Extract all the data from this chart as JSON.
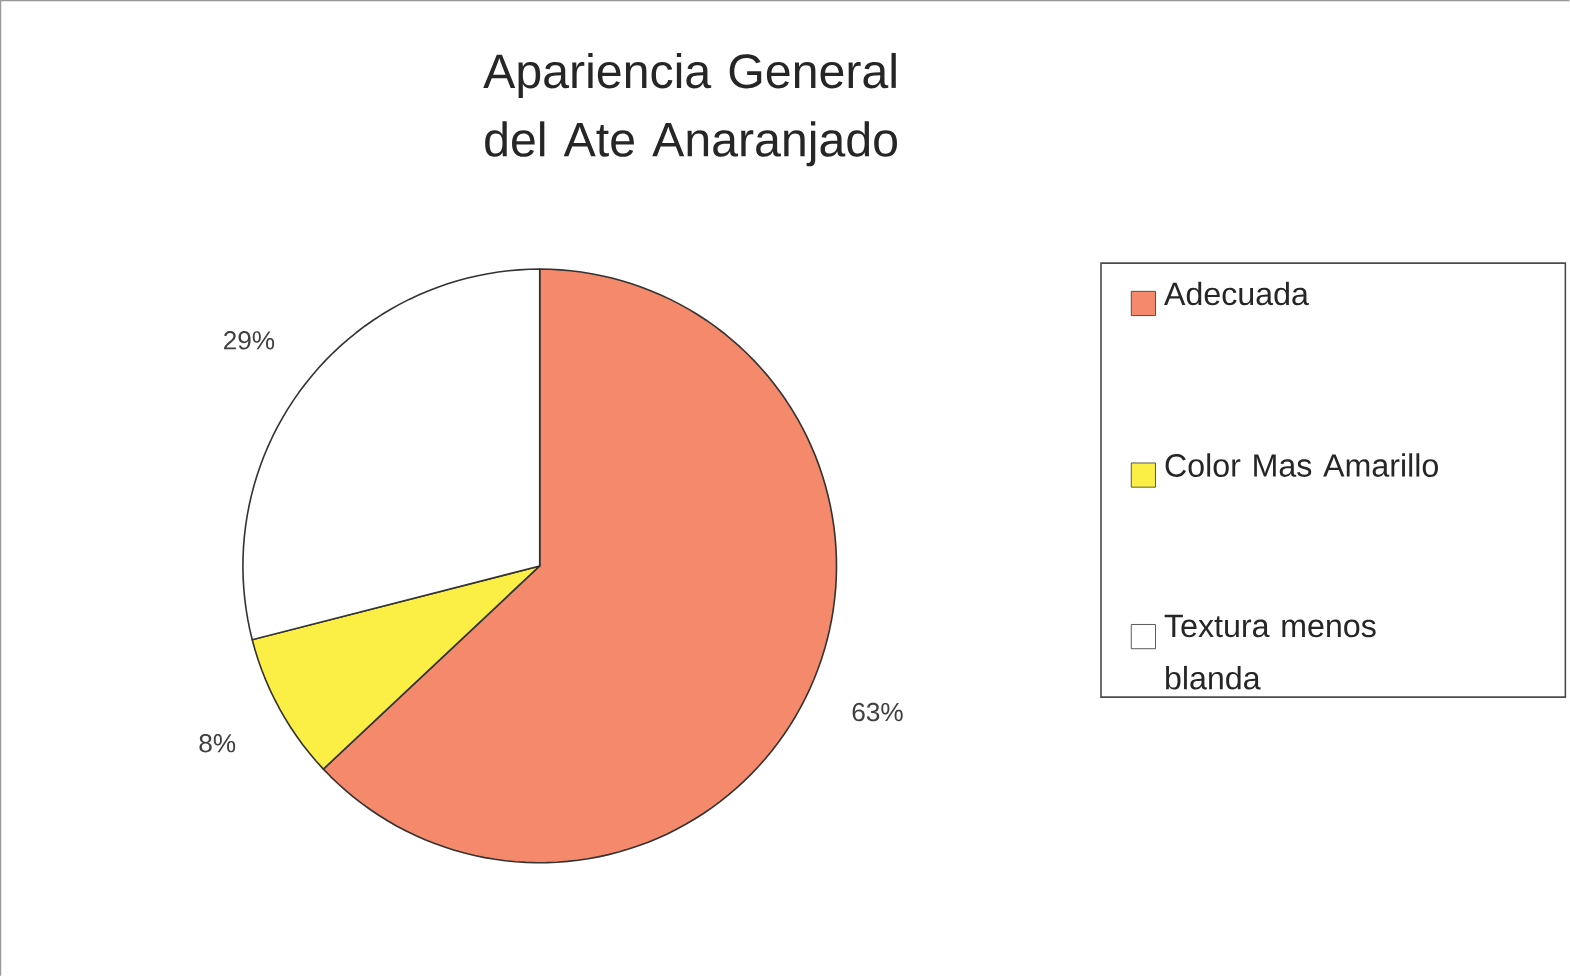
{
  "chart_data": {
    "type": "pie",
    "title": "Apariencia General del Ate Anaranjado",
    "categories": [
      "Adecuada",
      "Color Mas Amarillo",
      "Textura menos blanda"
    ],
    "values": [
      63,
      8,
      29
    ],
    "colors": [
      "#f4896b",
      "#fbee44",
      "#ffffff"
    ],
    "value_labels": [
      "63%",
      "8%",
      "29%"
    ],
    "legend": "right"
  }
}
